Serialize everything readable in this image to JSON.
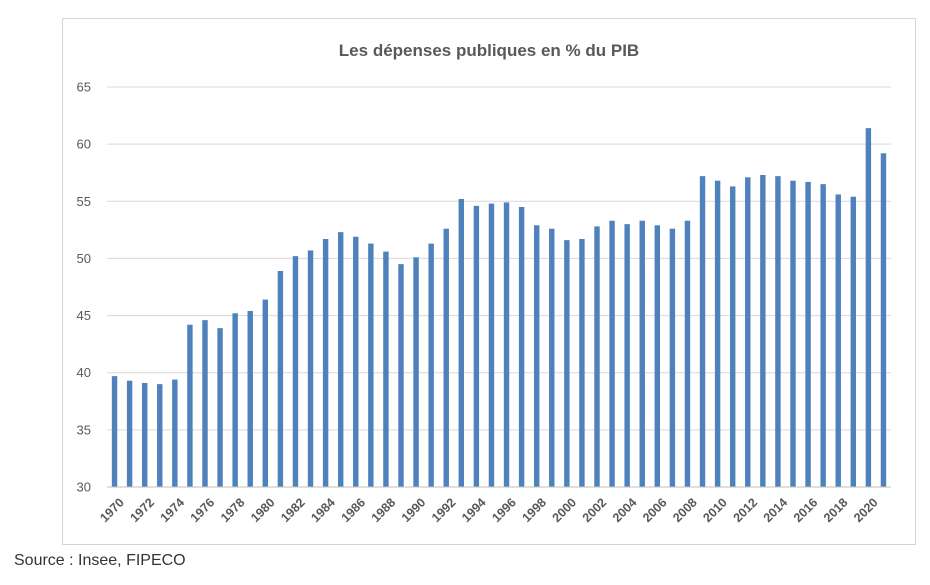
{
  "source_note": "Source : Insee, FIPECO",
  "colors": {
    "bar": "#4f81bd",
    "grid": "#d9d9d9",
    "text": "#595959"
  },
  "chart_data": {
    "type": "bar",
    "title": "Les dépenses publiques  en % du PIB",
    "xlabel": "",
    "ylabel": "",
    "ylim": [
      30,
      65
    ],
    "yticks": [
      30,
      35,
      40,
      45,
      50,
      55,
      60,
      65
    ],
    "grid": true,
    "legend": "none",
    "x_tick_labels": [
      "1970",
      "1972",
      "1974",
      "1976",
      "1978",
      "1980",
      "1982",
      "1984",
      "1986",
      "1988",
      "1990",
      "1992",
      "1994",
      "1996",
      "1998",
      "2000",
      "2002",
      "2004",
      "2006",
      "2008",
      "2010",
      "2012",
      "2014",
      "2016",
      "2018",
      "2020"
    ],
    "categories": [
      "1970",
      "1971",
      "1972",
      "1973",
      "1974",
      "1975",
      "1976",
      "1977",
      "1978",
      "1979",
      "1980",
      "1981",
      "1982",
      "1983",
      "1984",
      "1985",
      "1986",
      "1987",
      "1988",
      "1989",
      "1990",
      "1991",
      "1992",
      "1993",
      "1994",
      "1995",
      "1996",
      "1997",
      "1998",
      "1999",
      "2000",
      "2001",
      "2002",
      "2003",
      "2004",
      "2005",
      "2006",
      "2007",
      "2008",
      "2009",
      "2010",
      "2011",
      "2012",
      "2013",
      "2014",
      "2015",
      "2016",
      "2017",
      "2018",
      "2019",
      "2020",
      "2021"
    ],
    "values": [
      39.7,
      39.3,
      39.1,
      39.0,
      39.4,
      44.2,
      44.6,
      43.9,
      45.2,
      45.4,
      46.4,
      48.9,
      50.2,
      50.7,
      51.7,
      52.3,
      51.9,
      51.3,
      50.6,
      49.5,
      50.1,
      51.3,
      52.6,
      55.2,
      54.6,
      54.8,
      54.9,
      54.5,
      52.9,
      52.6,
      51.6,
      51.7,
      52.8,
      53.3,
      53.0,
      53.3,
      52.9,
      52.6,
      53.3,
      57.2,
      56.8,
      56.3,
      57.1,
      57.3,
      57.2,
      56.8,
      56.7,
      56.5,
      55.6,
      55.4,
      61.4,
      59.2
    ]
  }
}
